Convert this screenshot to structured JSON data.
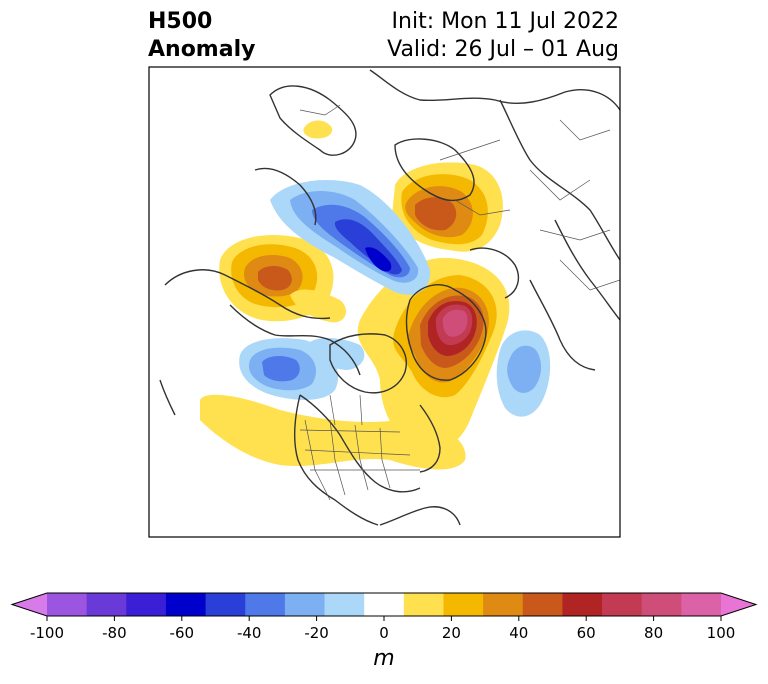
{
  "header": {
    "title_left_line1": "H500",
    "title_left_line2": "Anomaly",
    "title_right_line1": "Init: Mon 11 Jul 2022",
    "title_right_line2": "Valid: 26 Jul – 01 Aug"
  },
  "colorbar": {
    "unit": "m",
    "ticks": [
      "-100",
      "-80",
      "-60",
      "-40",
      "-20",
      "0",
      "20",
      "40",
      "60",
      "80",
      "100"
    ],
    "colors": [
      "#d67be8",
      "#9b55e0",
      "#6a3ad8",
      "#3a1fd6",
      "#0000cc",
      "#2a3fd8",
      "#4f78e8",
      "#7cb0f2",
      "#abd8f9",
      "#ffffff",
      "#ffe14f",
      "#f5b800",
      "#de8a13",
      "#c9581b",
      "#b02424",
      "#c23b52",
      "#cf4d79",
      "#dc62a8",
      "#e874d6"
    ]
  },
  "map": {
    "projection": "polar stereographic",
    "field": "500 hPa geopotential height anomaly"
  }
}
